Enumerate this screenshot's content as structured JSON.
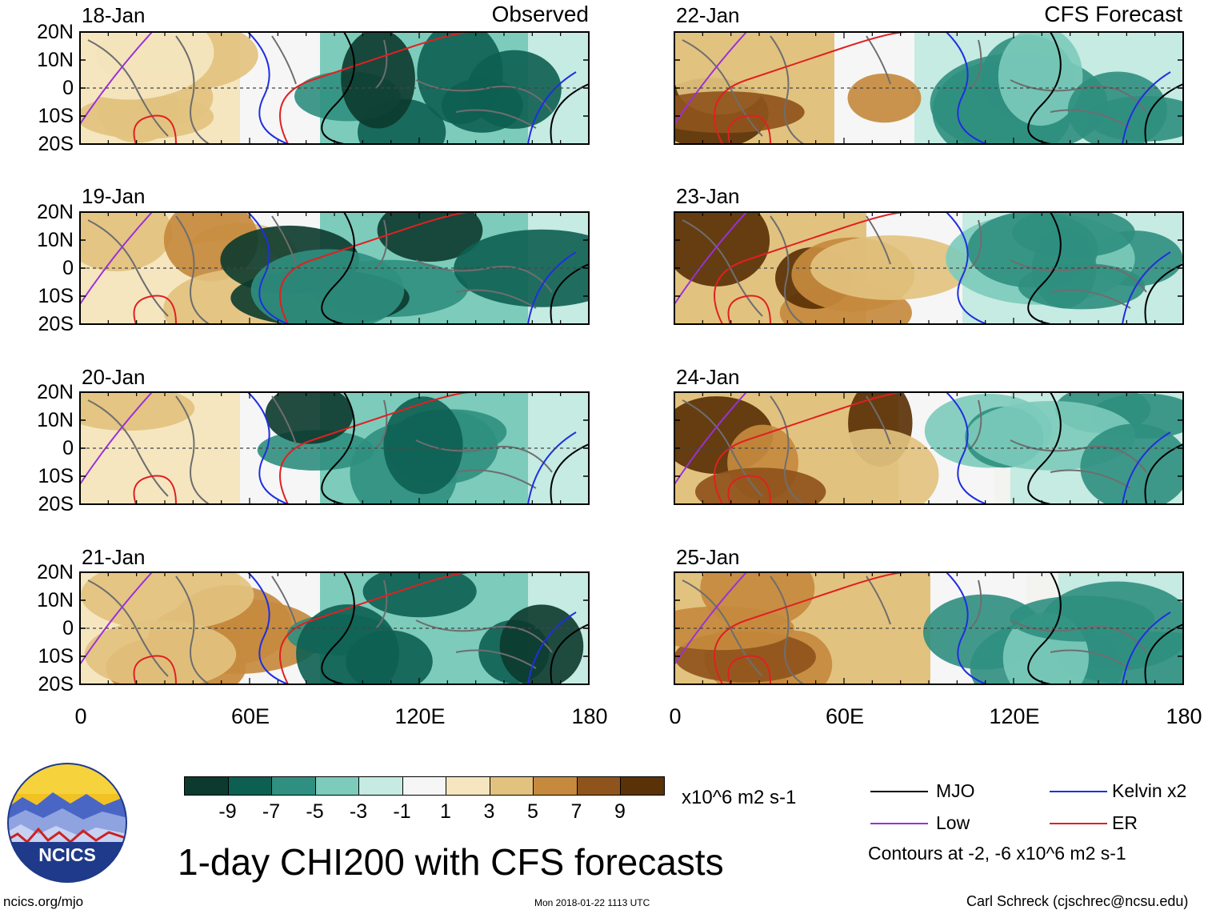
{
  "header": {
    "observed_label": "Observed",
    "forecast_label": "CFS Forecast"
  },
  "panels": {
    "observed": [
      "18-Jan",
      "19-Jan",
      "20-Jan",
      "21-Jan"
    ],
    "forecast": [
      "22-Jan",
      "23-Jan",
      "24-Jan",
      "25-Jan"
    ]
  },
  "axes": {
    "lat_ticks": [
      "20N",
      "10N",
      "0",
      "10S",
      "20S"
    ],
    "lon_ticks": [
      "0",
      "60E",
      "120E",
      "180"
    ]
  },
  "colorbar": {
    "colors": [
      "#0c3a2e",
      "#0d5f52",
      "#2f8f80",
      "#7ccbbb",
      "#c5ebe2",
      "#f6f6f6",
      "#f5e6c0",
      "#e2c27f",
      "#c58a3e",
      "#8f541c",
      "#5a3208"
    ],
    "tick_labels": [
      "-9",
      "-7",
      "-5",
      "-3",
      "-1",
      "1",
      "3",
      "5",
      "7",
      "9"
    ],
    "units": "x10^6 m2 s-1"
  },
  "legend": {
    "items": [
      {
        "label": "MJO",
        "color": "#000000"
      },
      {
        "label": "Kelvin x2",
        "color": "#1f2fe0"
      },
      {
        "label": "Low",
        "color": "#9b30d8"
      },
      {
        "label": "ER",
        "color": "#e02020"
      }
    ],
    "contour_note": "Contours at -2, -6 x10^6 m2 s-1"
  },
  "footer": {
    "title": "1-day CHI200 with CFS forecasts",
    "logo_text": "NCICS",
    "url": "ncics.org/mjo",
    "timestamp": "Mon 2018-01-22 1113 UTC",
    "credit": "Carl Schreck (cjschrec@ncsu.edu)"
  }
}
